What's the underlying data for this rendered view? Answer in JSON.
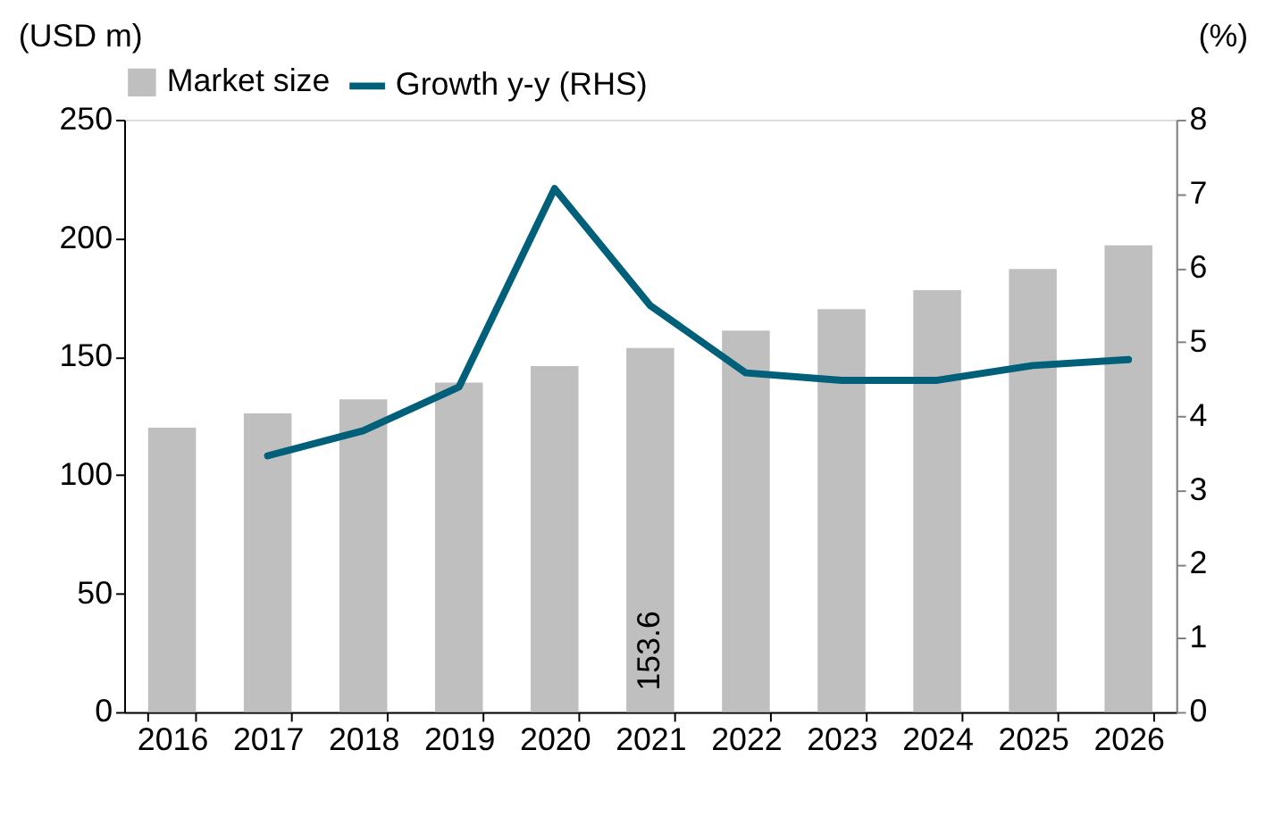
{
  "chart_data": {
    "type": "bar",
    "ylabel": "(USD m)",
    "y2label": "(%)",
    "categories": [
      "2016",
      "2017",
      "2018",
      "2019",
      "2020",
      "2021",
      "2022",
      "2023",
      "2024",
      "2025",
      "2026"
    ],
    "series": [
      {
        "name": "Market size",
        "color": "#bfbfbf",
        "values": [
          120,
          126,
          132,
          139,
          146,
          153.6,
          161,
          170,
          178,
          187,
          197
        ],
        "value_labels": [
          null,
          null,
          null,
          null,
          null,
          "153.6",
          null,
          null,
          null,
          null,
          null
        ]
      },
      {
        "name": "Growth y-y (RHS)",
        "type": "line",
        "axis": "y2",
        "color": "#00607a",
        "values": [
          null,
          3.46,
          3.8,
          4.39,
          7.07,
          5.49,
          4.58,
          4.48,
          4.48,
          4.68,
          4.76
        ]
      }
    ],
    "ylim": [
      0,
      250
    ],
    "yticks": [
      0,
      50,
      100,
      150,
      200,
      250
    ],
    "y2lim": [
      0,
      8
    ],
    "y2ticks": [
      0,
      1,
      2,
      3,
      4,
      5,
      6,
      7,
      8
    ],
    "legend": "top",
    "grid": false,
    "marker": "none",
    "line_style": "solid"
  }
}
